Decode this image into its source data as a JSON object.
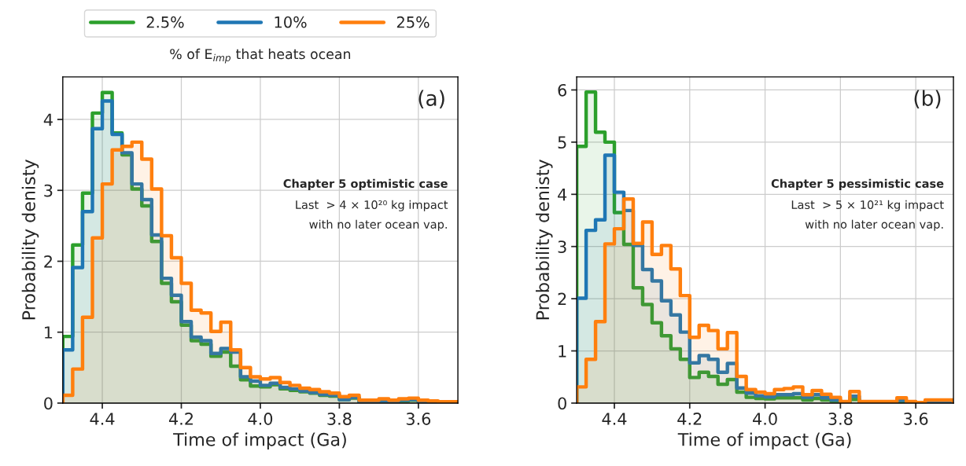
{
  "chart_data": [
    {
      "type": "histogram",
      "xlabel": "Time of impact (Ga)",
      "ylabel": "Probability denisty",
      "legend": "top",
      "legend_title": "% of E$_{imp}$ that heats ocean",
      "grid": true,
      "bins": [
        4.5,
        4.475,
        4.45,
        4.425,
        4.4,
        4.375,
        4.35,
        4.325,
        4.3,
        4.275,
        4.25,
        4.225,
        4.2,
        4.175,
        4.15,
        4.125,
        4.1,
        4.075,
        4.05,
        4.025,
        4.0,
        3.975,
        3.95,
        3.925,
        3.9,
        3.875,
        3.85,
        3.825,
        3.8,
        3.775,
        3.75,
        3.725,
        3.7,
        3.675,
        3.65,
        3.625,
        3.6,
        3.575,
        3.55,
        3.525,
        3.5
      ],
      "xlim": [
        4.5,
        3.5
      ],
      "xticks": [
        4.4,
        4.2,
        {
          "value": 4,
          "label": "4.0"
        },
        3.8,
        3.6
      ],
      "ylim": [
        0,
        4.6
      ],
      "yticks": [
        0,
        1,
        2,
        3,
        4
      ],
      "annotations": [
        "(a)",
        "Chapter 5 optimistic case",
        "Last  > 4 × 10²⁰ kg impact",
        "with no later ocean vap."
      ],
      "series": [
        {
          "name": "2.5%",
          "color": "#2ca02c",
          "values": [
            0.94,
            2.23,
            2.96,
            4.09,
            4.38,
            3.81,
            3.5,
            3.02,
            2.78,
            2.28,
            1.69,
            1.43,
            1.1,
            0.88,
            0.83,
            0.66,
            0.72,
            0.52,
            0.33,
            0.24,
            0.23,
            0.26,
            0.2,
            0.18,
            0.16,
            0.14,
            0.11,
            0.1,
            0.05,
            0.07,
            0.02,
            0.02,
            0.03,
            0.02,
            0.03,
            0.04,
            0.02,
            0.01,
            0.01,
            0.01
          ]
        },
        {
          "name": "10%",
          "color": "#1f77b4",
          "values": [
            0.75,
            1.91,
            2.7,
            3.87,
            4.26,
            3.79,
            3.53,
            3.09,
            2.87,
            2.37,
            1.76,
            1.52,
            1.15,
            0.93,
            0.88,
            0.7,
            0.77,
            0.72,
            0.37,
            0.31,
            0.25,
            0.28,
            0.22,
            0.2,
            0.17,
            0.15,
            0.12,
            0.11,
            0.05,
            0.08,
            0.02,
            0.02,
            0.03,
            0.02,
            0.04,
            0.05,
            0.02,
            0.02,
            0.01,
            0.01
          ]
        },
        {
          "name": "25%",
          "color": "#ff7f0e",
          "values": [
            0.11,
            0.48,
            1.21,
            2.33,
            3.09,
            3.57,
            3.62,
            3.68,
            3.44,
            3.02,
            2.36,
            2.05,
            1.69,
            1.31,
            1.27,
            1.01,
            1.14,
            0.75,
            0.5,
            0.37,
            0.34,
            0.36,
            0.29,
            0.25,
            0.21,
            0.19,
            0.16,
            0.14,
            0.09,
            0.11,
            0.04,
            0.04,
            0.06,
            0.04,
            0.06,
            0.07,
            0.04,
            0.03,
            0.02,
            0.02
          ]
        }
      ]
    },
    {
      "type": "histogram",
      "xlabel": "Time of impact (Ga)",
      "ylabel": "Probability denisty",
      "grid": true,
      "bins": [
        4.5,
        4.475,
        4.45,
        4.425,
        4.4,
        4.375,
        4.35,
        4.325,
        4.3,
        4.275,
        4.25,
        4.225,
        4.2,
        4.175,
        4.15,
        4.125,
        4.1,
        4.075,
        4.05,
        4.025,
        4.0,
        3.975,
        3.95,
        3.925,
        3.9,
        3.875,
        3.85,
        3.825,
        3.8,
        3.775,
        3.75,
        3.725,
        3.7,
        3.675,
        3.65,
        3.625,
        3.6,
        3.575,
        3.55,
        3.525,
        3.5
      ],
      "xlim": [
        4.5,
        3.5
      ],
      "xticks": [
        4.4,
        4.2,
        {
          "value": 4,
          "label": "4.0"
        },
        3.8,
        3.6
      ],
      "ylim": [
        0,
        6.25
      ],
      "yticks": [
        0,
        1,
        2,
        3,
        4,
        5,
        6
      ],
      "annotations": [
        "(b)",
        "Chapter 5 pessimistic case",
        "Last  > 5 × 10²¹ kg impact",
        "with no later ocean vap."
      ],
      "series": [
        {
          "color": "#2ca02c",
          "values": [
            4.92,
            5.96,
            5.19,
            5.0,
            3.65,
            3.04,
            2.21,
            1.89,
            1.54,
            1.29,
            1.04,
            0.84,
            0.49,
            0.59,
            0.51,
            0.36,
            0.45,
            0.21,
            0.11,
            0.09,
            0.08,
            0.1,
            0.1,
            0.1,
            0.06,
            0.09,
            0.06,
            0.04,
            0.01,
            0.07,
            0.01,
            0.01,
            0.01,
            0.01,
            0.03,
            0.01,
            0.0,
            0.02,
            0.02,
            0.02
          ]
        },
        {
          "color": "#1f77b4",
          "values": [
            2.01,
            3.31,
            3.51,
            4.75,
            4.04,
            3.69,
            3.02,
            2.56,
            2.34,
            1.96,
            1.69,
            1.36,
            0.77,
            0.91,
            0.84,
            0.59,
            0.76,
            0.29,
            0.19,
            0.14,
            0.12,
            0.16,
            0.16,
            0.18,
            0.11,
            0.16,
            0.1,
            0.06,
            0.01,
            0.13,
            0.02,
            0.02,
            0.02,
            0.02,
            0.05,
            0.02,
            0.01,
            0.03,
            0.03,
            0.03
          ]
        },
        {
          "color": "#ff7f0e",
          "values": [
            0.31,
            0.84,
            1.56,
            3.05,
            3.34,
            3.91,
            3.06,
            3.47,
            2.85,
            3.02,
            2.57,
            2.06,
            1.26,
            1.49,
            1.39,
            1.04,
            1.35,
            0.51,
            0.26,
            0.21,
            0.18,
            0.26,
            0.28,
            0.31,
            0.16,
            0.24,
            0.17,
            0.11,
            0.03,
            0.22,
            0.03,
            0.03,
            0.03,
            0.03,
            0.1,
            0.03,
            0.01,
            0.06,
            0.06,
            0.06
          ]
        }
      ]
    }
  ]
}
